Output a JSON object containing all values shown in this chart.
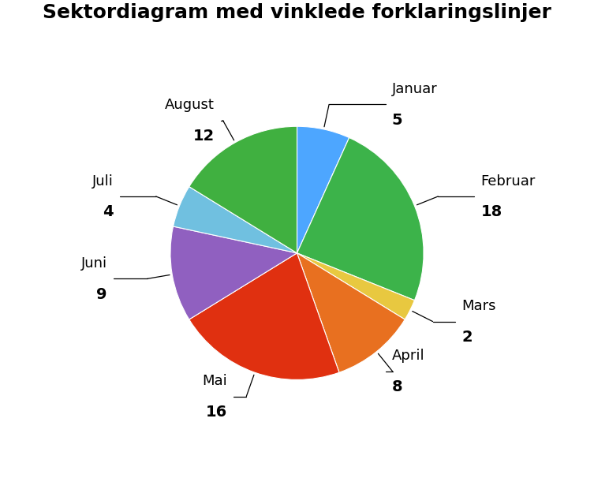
{
  "title": "Sektordiagram med vinklede forklaringslinjer",
  "labels": [
    "Januar",
    "Februar",
    "Mars",
    "April",
    "Mai",
    "Juni",
    "Juli",
    "August"
  ],
  "values": [
    5,
    18,
    2,
    8,
    16,
    9,
    4,
    12
  ],
  "colors": [
    "#4da6ff",
    "#3cb34a",
    "#e8c840",
    "#e87020",
    "#e03010",
    "#9060c0",
    "#70c0e0",
    "#40b040"
  ],
  "title_fontsize": 18,
  "label_fontsize": 13,
  "value_fontsize": 14,
  "background_color": "#ffffff",
  "figsize": [
    7.53,
    6.06
  ],
  "dpi": 100
}
